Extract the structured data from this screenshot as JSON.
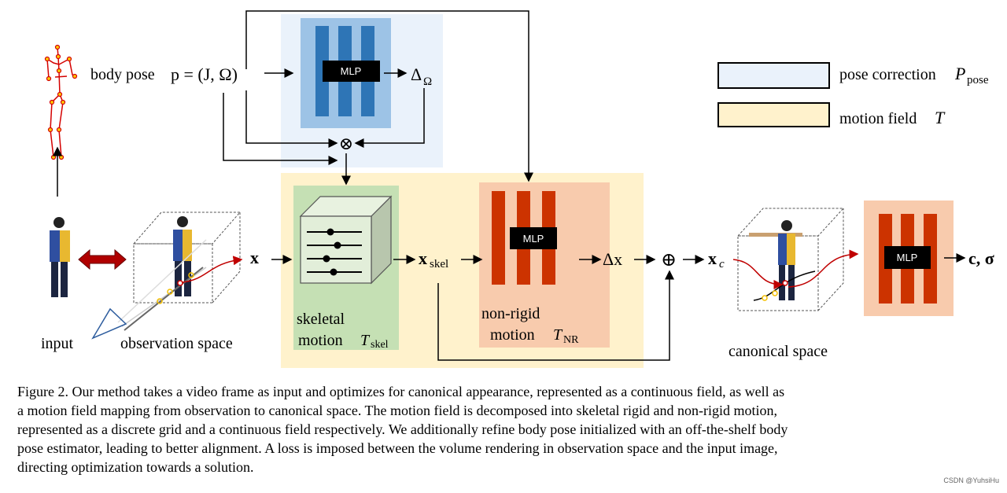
{
  "figure": {
    "labels": {
      "body_pose": "body pose",
      "pose_eq": "p = (J, Ω)",
      "delta_omega": "Δ",
      "delta_omega_sub": "Ω",
      "otimes": "⊗",
      "oplus": "⊕",
      "mlp": "MLP",
      "x": "x",
      "x_skel": "x",
      "x_skel_sub": "skel",
      "delta_x": "Δx",
      "x_c": "x",
      "x_c_sub": "c",
      "output": "c, σ",
      "skeletal": "skeletal",
      "skeletal_motion": "motion",
      "T_skel": "T",
      "T_skel_sub": "skel",
      "non_rigid": "non-rigid",
      "non_rigid_motion": "motion",
      "T_NR": "T",
      "T_NR_sub": "NR",
      "input": "input",
      "observation_space": "observation space",
      "canonical_space": "canonical space"
    },
    "legend": [
      {
        "label": "pose correction",
        "symbol": "P",
        "symbol_sub": "pose",
        "color": "#eaf2fb"
      },
      {
        "label": "motion field",
        "symbol": "T",
        "symbol_sub": "",
        "color": "#fff2cc"
      }
    ],
    "colors": {
      "pose_bg": "#eaf2fb",
      "pose_mlp_bg": "#9dc3e6",
      "pose_mlp_bar": "#2e75b6",
      "motion_bg": "#fff2cc",
      "skeletal_bg": "#c5e0b4",
      "nonrigid_bg": "#f8cbad",
      "nonrigid_bar": "#cc3300",
      "skeleton": "#d40000"
    }
  },
  "caption": {
    "lines": [
      "Figure 2. Our method takes a video frame as input and optimizes for canonical appearance, represented as a continuous field, as well as",
      "a motion field mapping from observation to canonical space.  The motion field is decomposed into skeletal rigid and non-rigid motion,",
      "represented as a discrete grid and a continuous field respectively. We additionally refine body pose initialized with an off-the-shelf body",
      "pose estimator, leading to better alignment.  A loss is imposed between the volume rendering in observation space and the input image,",
      "directing optimization towards a solution."
    ]
  },
  "watermark": "CSDN @YuhsiHu"
}
